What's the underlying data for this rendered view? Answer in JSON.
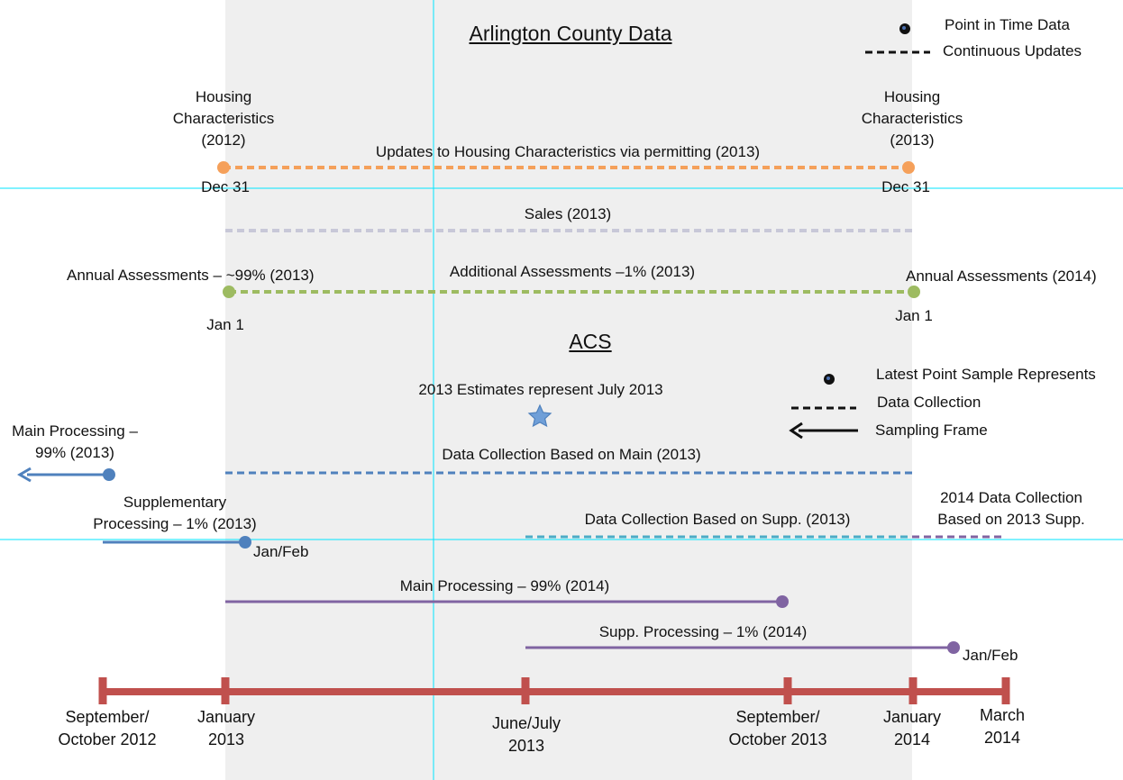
{
  "sections": {
    "county_title": "Arlington County Data",
    "acs_title": "ACS"
  },
  "county_legend": {
    "point": "Point in Time Data",
    "continuous": "Continuous Updates"
  },
  "acs_legend": {
    "point": "Latest Point Sample Represents",
    "dashed": "Data Collection",
    "arrow": "Sampling Frame"
  },
  "housing": {
    "left_label": "Housing\nCharacteristics\n(2012)",
    "right_label": "Housing\nCharacteristics\n(2013)",
    "line_label": "Updates to Housing Characteristics via permitting (2013)",
    "left_date": "Dec 31",
    "right_date": "Dec 31",
    "color": "#f5a05a"
  },
  "sales": {
    "line_label": "Sales (2013)",
    "color": "#c8c8d8"
  },
  "assessments": {
    "left_label": "Annual Assessments – ~99% (2013)",
    "mid_label": "Additional Assessments –1% (2013)",
    "right_label": "Annual Assessments (2014)",
    "left_date": "Jan 1",
    "right_date": "Jan 1",
    "color": "#9dbb61"
  },
  "acs": {
    "estimates_label": "2013 Estimates represent July 2013",
    "main_processing_2013": "Main Processing –\n99% (2013)",
    "data_collection_main": "Data Collection Based on Main (2013)",
    "supp_processing_2013": "Supplementary\nProcessing – 1% (2013)",
    "supp_date": "Jan/Feb",
    "data_collection_supp": "Data Collection Based on Supp. (2013)",
    "collection_2014": "2014 Data Collection\nBased on  2013 Supp.",
    "main_processing_2014": "Main Processing – 99% (2014)",
    "supp_processing_2014": "Supp. Processing – 1% (2014)",
    "supp_2014_date": "Jan/Feb",
    "blue": "#4f81bd",
    "cyan": "#4bacc6",
    "purple": "#8064a2",
    "star": "#4f81bd"
  },
  "timeline": {
    "color": "#c0504d",
    "labels": [
      "September/\nOctober 2012",
      "January\n2013",
      "June/July\n2013",
      "September/\nOctober 2013",
      "January\n2014",
      "March\n2014"
    ]
  },
  "colors": {
    "shading": "#efefef",
    "guides": "#00e5ff"
  }
}
